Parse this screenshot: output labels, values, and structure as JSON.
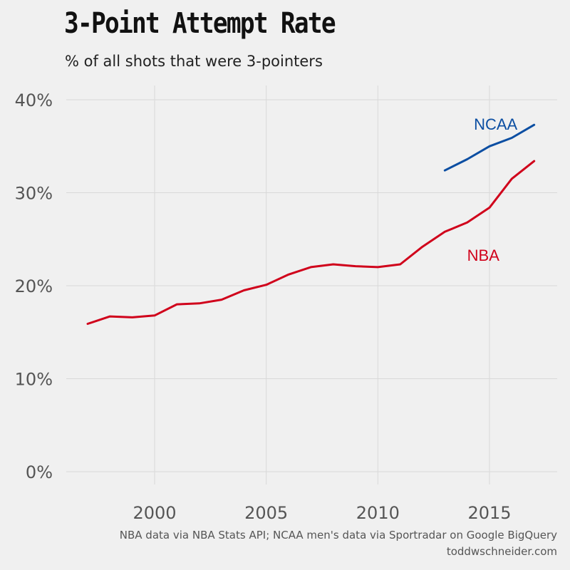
{
  "title": "3-Point Attempt Rate",
  "subtitle": "% of all shots that were 3-pointers",
  "caption_line1": "NBA data via NBA Stats API; NCAA men's data via Sportradar on Google BigQuery",
  "caption_line2": "toddwschneider.com",
  "colors": {
    "background": "#f0f0f0",
    "grid": "#d9d9d9",
    "nba": "#d0021b",
    "ncaa": "#0b4ea2"
  },
  "chart_data": {
    "type": "line",
    "title": "3-Point Attempt Rate",
    "subtitle": "% of all shots that were 3-pointers",
    "xlabel": "",
    "ylabel": "",
    "xlim": [
      1996.5,
      2018
    ],
    "ylim": [
      0,
      40
    ],
    "x_ticks": [
      2000,
      2005,
      2010,
      2015
    ],
    "x_tick_labels": [
      "2000",
      "2005",
      "2010",
      "2015"
    ],
    "y_ticks": [
      0,
      10,
      20,
      30,
      40
    ],
    "y_tick_labels": [
      "0%",
      "10%",
      "20%",
      "30%",
      "40%"
    ],
    "grid": true,
    "legend": "none (direct labels)",
    "series": [
      {
        "name": "NBA",
        "color": "#d0021b",
        "x": [
          1997,
          1998,
          1999,
          2000,
          2001,
          2002,
          2003,
          2004,
          2005,
          2006,
          2007,
          2008,
          2009,
          2010,
          2011,
          2012,
          2013,
          2014,
          2015,
          2016,
          2017
        ],
        "y": [
          15.9,
          16.7,
          16.6,
          16.8,
          18.0,
          18.1,
          18.5,
          19.5,
          20.1,
          21.2,
          22.0,
          22.3,
          22.1,
          22.0,
          22.3,
          24.2,
          25.8,
          26.8,
          28.4,
          31.5,
          33.4
        ]
      },
      {
        "name": "NCAA",
        "color": "#0b4ea2",
        "x": [
          2013,
          2014,
          2015,
          2016,
          2017
        ],
        "y": [
          32.4,
          33.6,
          35.0,
          35.9,
          37.3
        ]
      }
    ],
    "labels": [
      {
        "text": "NCAA",
        "series": "NCAA",
        "x": 2014.3,
        "y": 36.8
      },
      {
        "text": "NBA",
        "series": "NBA",
        "x": 2014.0,
        "y": 22.7
      }
    ]
  }
}
